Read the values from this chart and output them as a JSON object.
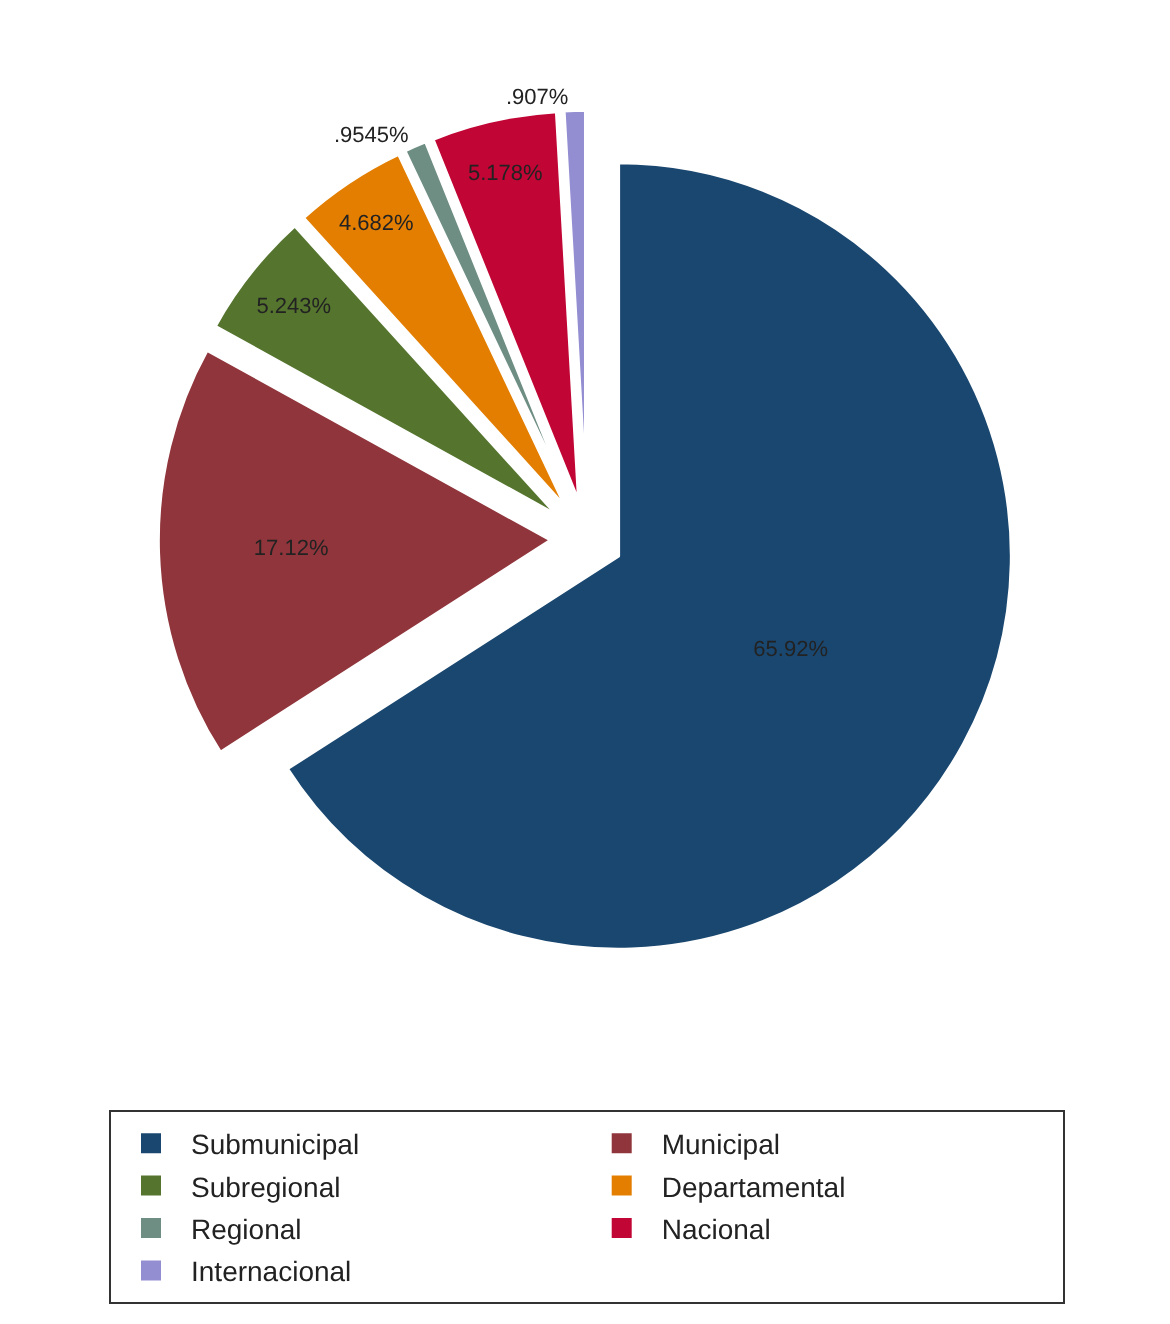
{
  "chart_data": {
    "type": "pie",
    "categories": [
      "Submunicipal",
      "Municipal",
      "Subregional",
      "Departamental",
      "Regional",
      "Nacional",
      "Internacional"
    ],
    "values": [
      65.92,
      17.12,
      5.243,
      4.682,
      0.9545,
      5.178,
      0.907
    ],
    "value_labels": [
      "65.92%",
      "17.12%",
      "5.243%",
      "4.682%",
      ".9545%",
      "5.178%",
      ".907%"
    ],
    "colors": [
      "#1a476f",
      "#90353b",
      "#55752f",
      "#e37e00",
      "#6e8e84",
      "#c10534",
      "#938dd2"
    ],
    "legend": "bottom"
  }
}
